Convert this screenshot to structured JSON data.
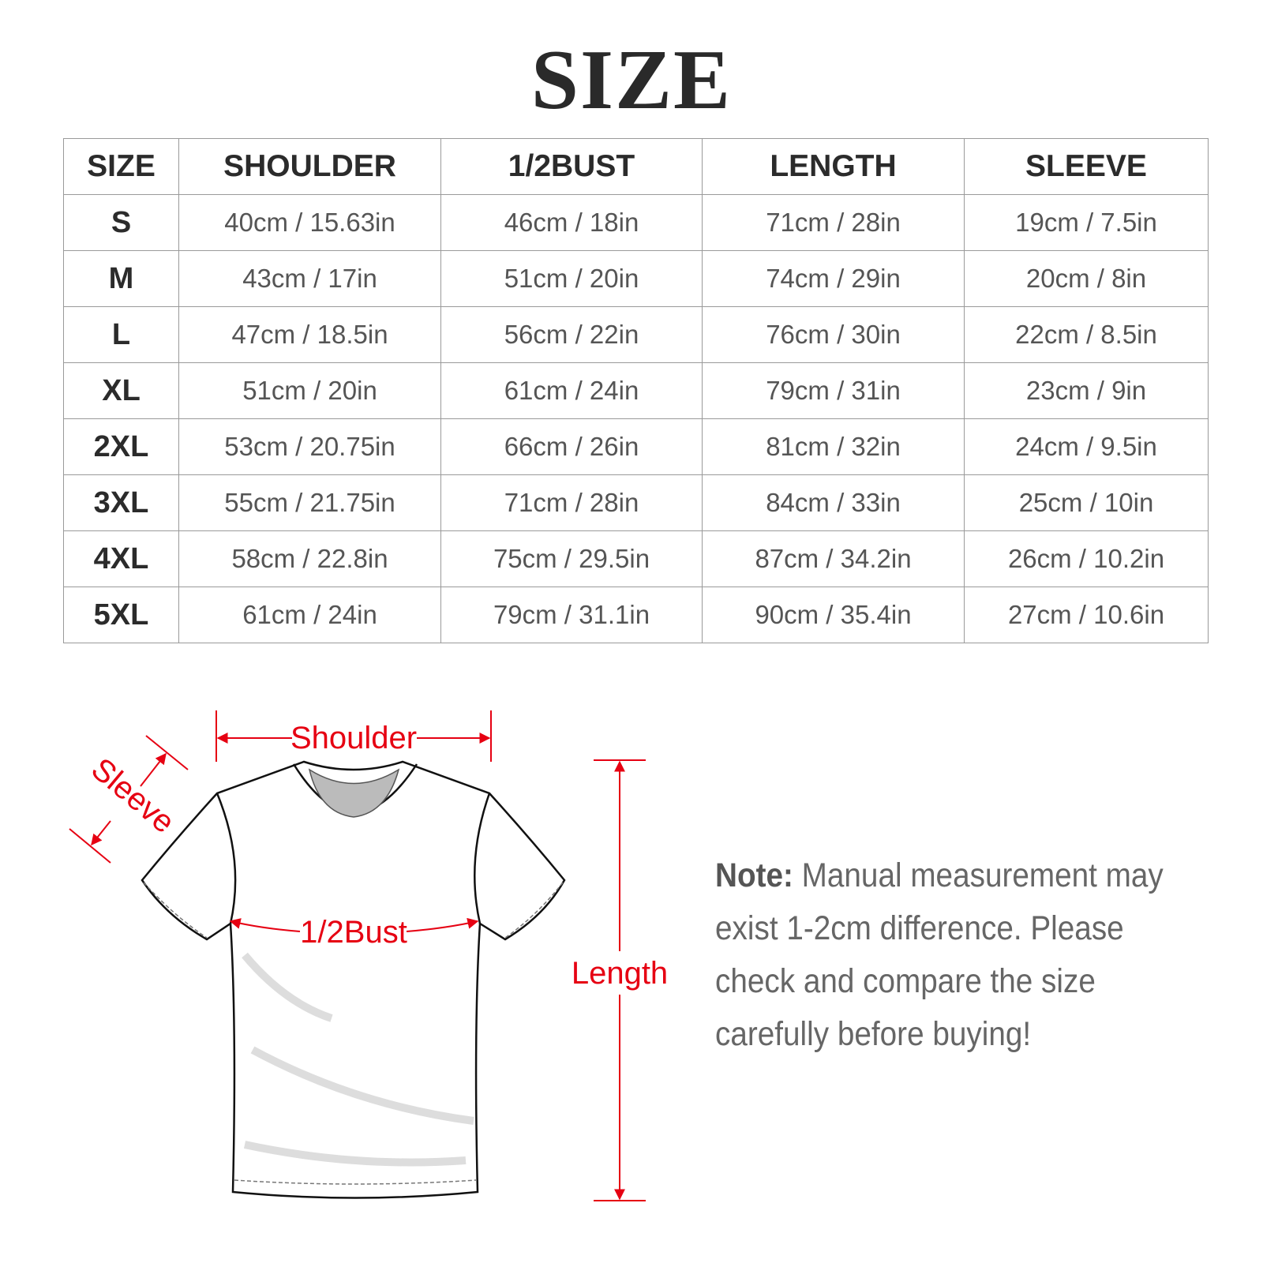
{
  "title": "SIZE",
  "table": {
    "headers": [
      "SIZE",
      "SHOULDER",
      "1/2BUST",
      "LENGTH",
      "SLEEVE"
    ],
    "rows": [
      [
        "S",
        "40cm / 15.63in",
        "46cm / 18in",
        "71cm / 28in",
        "19cm / 7.5in"
      ],
      [
        "M",
        "43cm / 17in",
        "51cm / 20in",
        "74cm / 29in",
        "20cm / 8in"
      ],
      [
        "L",
        "47cm / 18.5in",
        "56cm / 22in",
        "76cm / 30in",
        "22cm / 8.5in"
      ],
      [
        "XL",
        "51cm / 20in",
        "61cm / 24in",
        "79cm / 31in",
        "23cm / 9in"
      ],
      [
        "2XL",
        "53cm / 20.75in",
        "66cm / 26in",
        "81cm / 32in",
        "24cm / 9.5in"
      ],
      [
        "3XL",
        "55cm / 21.75in",
        "71cm / 28in",
        "84cm / 33in",
        "25cm / 10in"
      ],
      [
        "4XL",
        "58cm / 22.8in",
        "75cm / 29.5in",
        "87cm / 34.2in",
        "26cm / 10.2in"
      ],
      [
        "5XL",
        "61cm / 24in",
        "79cm / 31.1in",
        "90cm / 35.4in",
        "27cm / 10.6in"
      ]
    ]
  },
  "diagram": {
    "shoulder": "Shoulder",
    "sleeve": "Sleeve",
    "bust": "1/2Bust",
    "length": "Length",
    "accent": "#e60012"
  },
  "note": {
    "label": "Note:",
    "text": " Manual measurement may exist 1-2cm difference. Please check and compare the size carefully before buying!"
  }
}
